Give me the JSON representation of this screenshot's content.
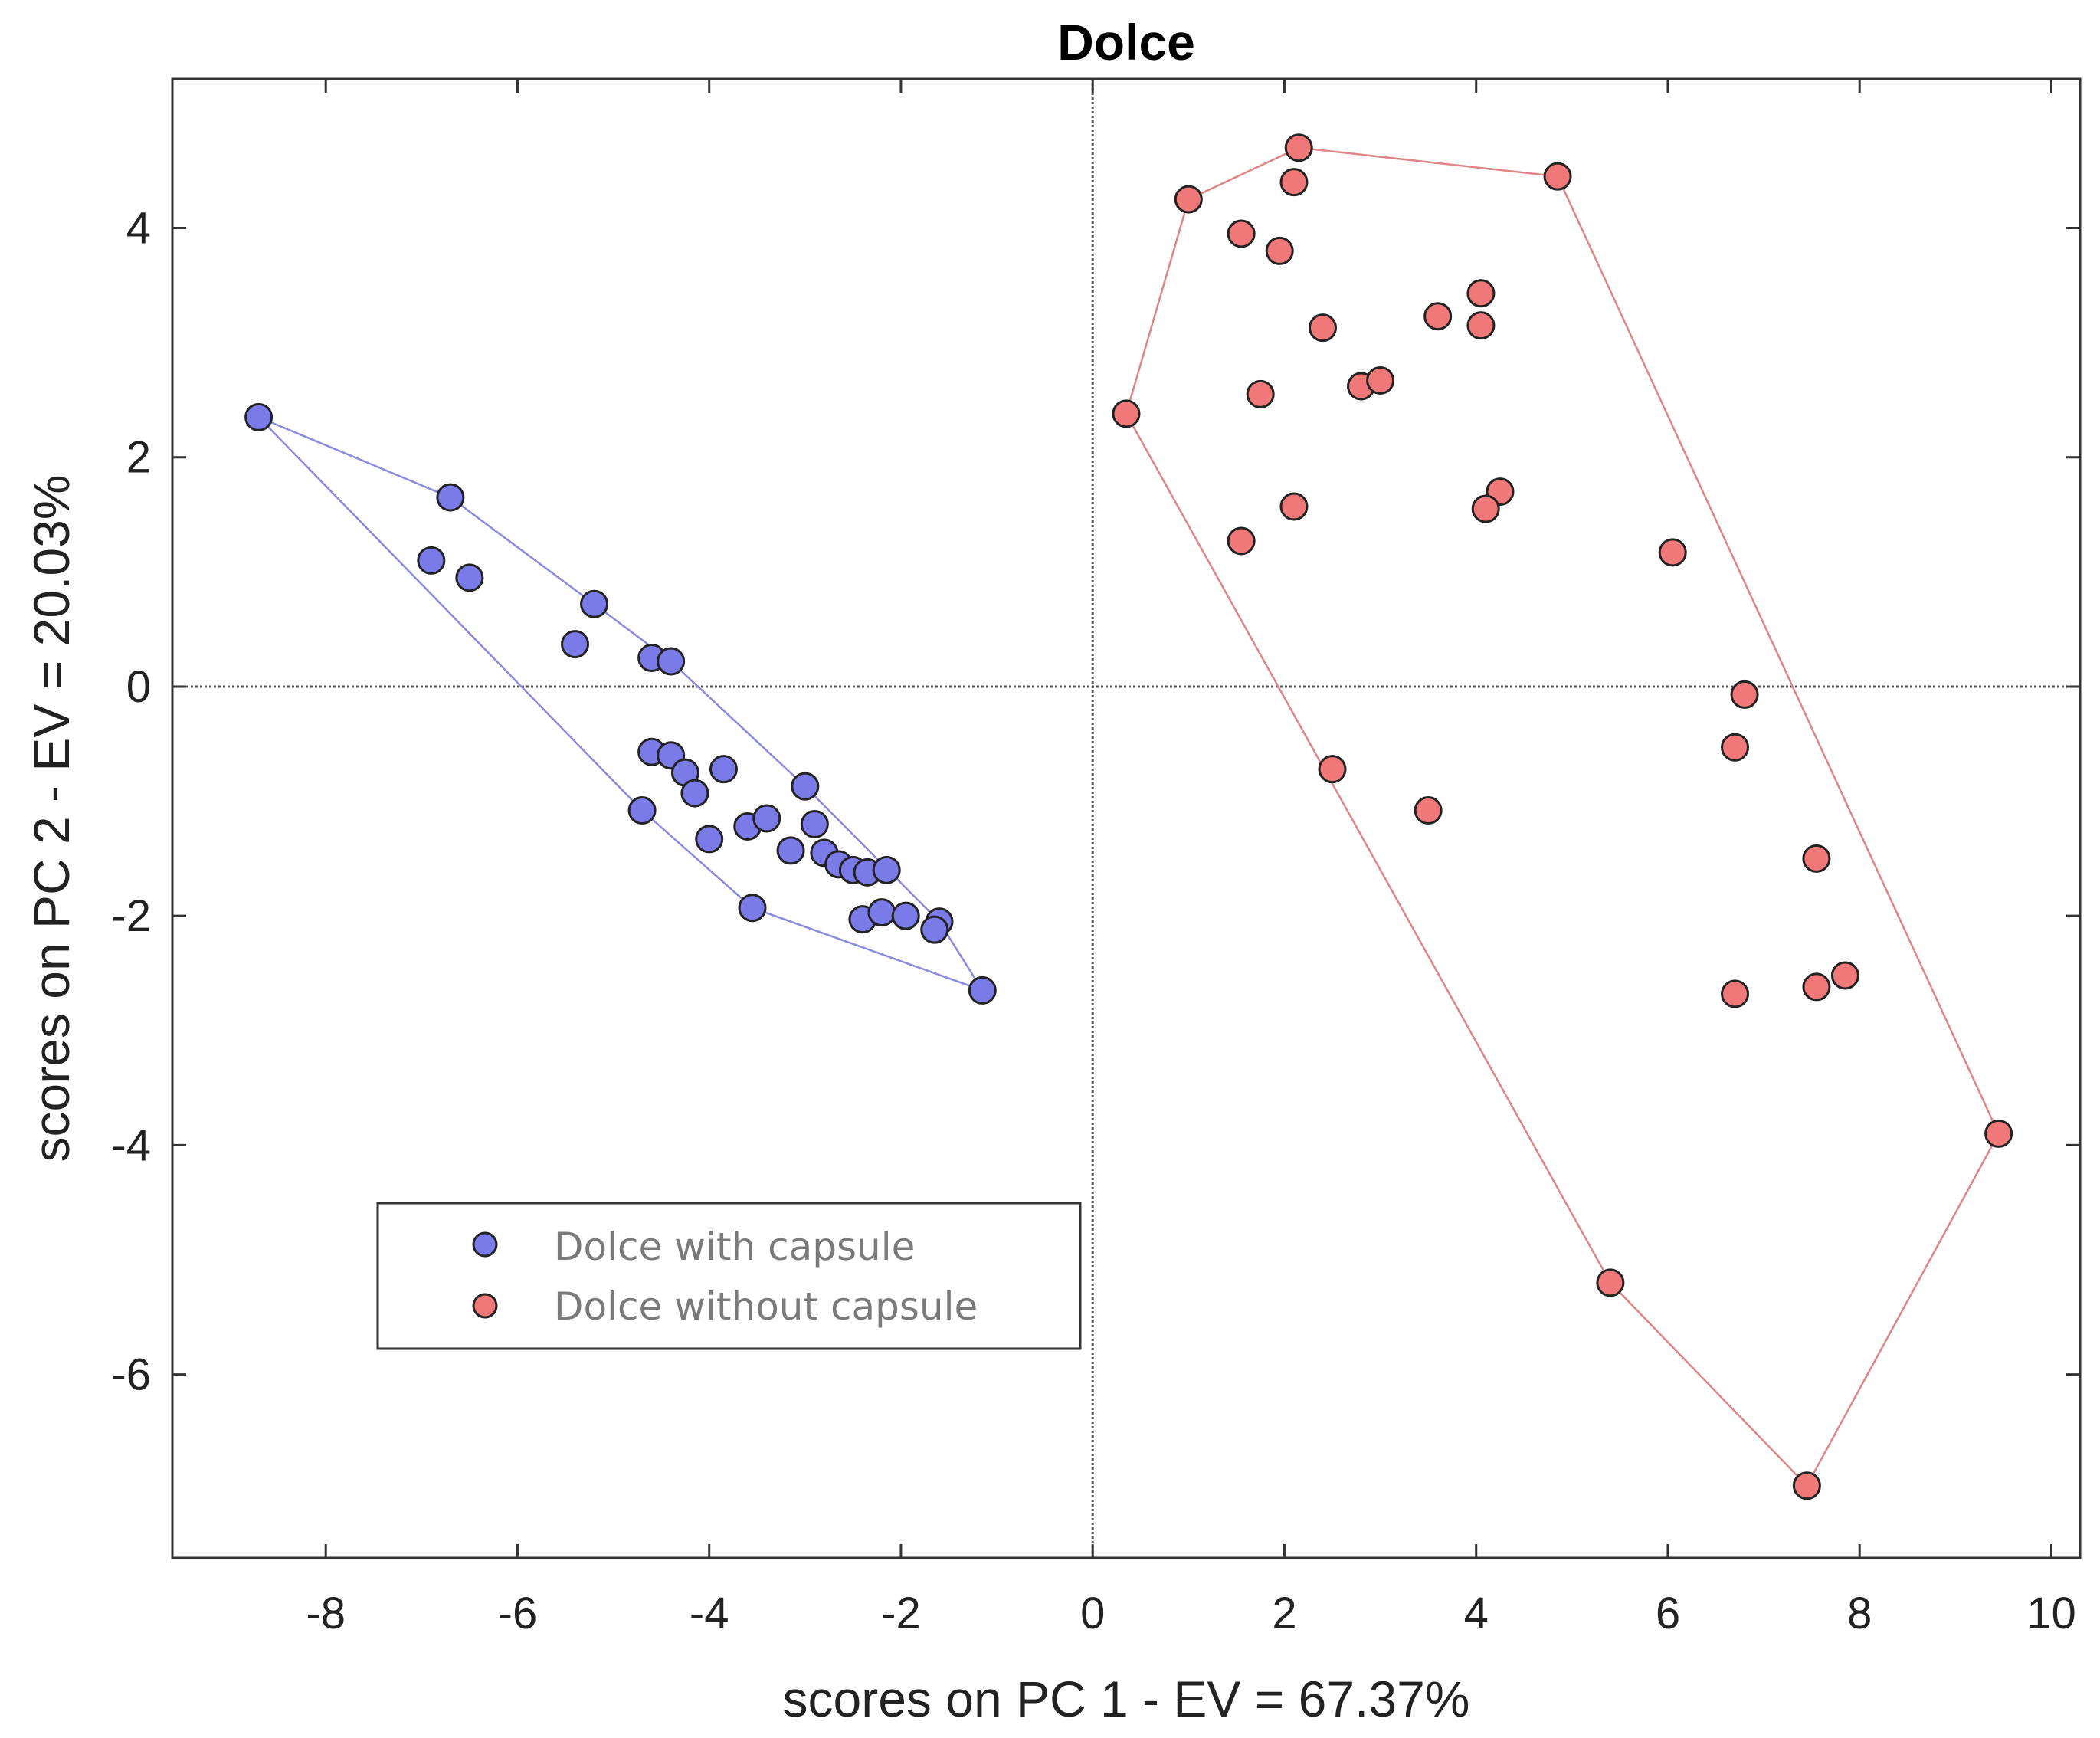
{
  "chart_data": {
    "type": "scatter",
    "title": "Dolce",
    "xlabel": "scores on PC 1 - EV = 67.37%",
    "ylabel": "scores on PC 2 - EV = 20.03%",
    "xlim": [
      -9.6,
      10.3
    ],
    "ylim": [
      -7.6,
      5.3
    ],
    "xticks": [
      -8,
      -6,
      -4,
      -2,
      0,
      2,
      4,
      6,
      8,
      10
    ],
    "yticks": [
      -6,
      -4,
      -2,
      0,
      2,
      4
    ],
    "reference_lines": {
      "x": 0,
      "y": 0
    },
    "legend_position": "lower-left",
    "series": [
      {
        "name": "Dolce with capsule",
        "color": "#7a7ae8",
        "hull_color": "#8a8ae0",
        "points": [
          [
            -8.7,
            2.35
          ],
          [
            -6.7,
            1.65
          ],
          [
            -6.9,
            1.1
          ],
          [
            -6.5,
            0.95
          ],
          [
            -5.2,
            0.72
          ],
          [
            -5.4,
            0.37
          ],
          [
            -4.6,
            0.25
          ],
          [
            -4.4,
            0.22
          ],
          [
            -4.6,
            -0.57
          ],
          [
            -4.4,
            -0.6
          ],
          [
            -4.25,
            -0.75
          ],
          [
            -4.15,
            -0.93
          ],
          [
            -3.85,
            -0.72
          ],
          [
            -4.7,
            -1.08
          ],
          [
            -4.0,
            -1.33
          ],
          [
            -3.6,
            -1.22
          ],
          [
            -3.4,
            -1.15
          ],
          [
            -3.0,
            -0.87
          ],
          [
            -2.9,
            -1.2
          ],
          [
            -3.15,
            -1.43
          ],
          [
            -2.8,
            -1.45
          ],
          [
            -2.65,
            -1.55
          ],
          [
            -2.5,
            -1.6
          ],
          [
            -2.35,
            -1.62
          ],
          [
            -2.15,
            -1.6
          ],
          [
            -3.55,
            -1.93
          ],
          [
            -2.4,
            -2.03
          ],
          [
            -2.2,
            -1.97
          ],
          [
            -1.95,
            -2.0
          ],
          [
            -1.6,
            -2.05
          ],
          [
            -1.65,
            -2.12
          ],
          [
            -1.15,
            -2.65
          ]
        ]
      },
      {
        "name": "Dolce without capsule",
        "color": "#f07878",
        "hull_color": "#e08585",
        "points": [
          [
            2.15,
            4.7
          ],
          [
            2.1,
            4.4
          ],
          [
            1.0,
            4.25
          ],
          [
            4.85,
            4.45
          ],
          [
            1.55,
            3.95
          ],
          [
            1.95,
            3.8
          ],
          [
            4.05,
            3.43
          ],
          [
            3.6,
            3.23
          ],
          [
            4.05,
            3.15
          ],
          [
            2.4,
            3.13
          ],
          [
            1.75,
            2.55
          ],
          [
            2.8,
            2.62
          ],
          [
            3.0,
            2.67
          ],
          [
            0.35,
            2.38
          ],
          [
            4.25,
            1.7
          ],
          [
            4.1,
            1.55
          ],
          [
            2.1,
            1.57
          ],
          [
            1.55,
            1.27
          ],
          [
            6.05,
            1.17
          ],
          [
            6.8,
            -0.07
          ],
          [
            6.7,
            -0.53
          ],
          [
            2.5,
            -0.72
          ],
          [
            3.5,
            -1.08
          ],
          [
            7.55,
            -1.5
          ],
          [
            7.85,
            -2.52
          ],
          [
            7.55,
            -2.62
          ],
          [
            6.7,
            -2.68
          ],
          [
            9.45,
            -3.9
          ],
          [
            5.4,
            -5.2
          ],
          [
            7.45,
            -6.97
          ]
        ]
      }
    ]
  }
}
